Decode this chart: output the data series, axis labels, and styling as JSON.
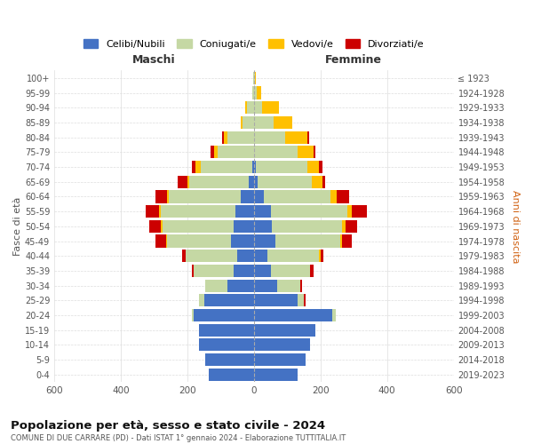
{
  "age_groups": [
    "0-4",
    "5-9",
    "10-14",
    "15-19",
    "20-24",
    "25-29",
    "30-34",
    "35-39",
    "40-44",
    "45-49",
    "50-54",
    "55-59",
    "60-64",
    "65-69",
    "70-74",
    "75-79",
    "80-84",
    "85-89",
    "90-94",
    "95-99",
    "100+"
  ],
  "birth_years": [
    "2019-2023",
    "2014-2018",
    "2009-2013",
    "2004-2008",
    "1999-2003",
    "1994-1998",
    "1989-1993",
    "1984-1988",
    "1979-1983",
    "1974-1978",
    "1969-1973",
    "1964-1968",
    "1959-1963",
    "1954-1958",
    "1949-1953",
    "1944-1948",
    "1939-1943",
    "1934-1938",
    "1929-1933",
    "1924-1928",
    "≤ 1923"
  ],
  "males": {
    "celibi": [
      135,
      145,
      165,
      165,
      180,
      150,
      80,
      60,
      50,
      70,
      60,
      55,
      40,
      15,
      5,
      0,
      0,
      0,
      0,
      0,
      0
    ],
    "coniugati": [
      0,
      0,
      0,
      0,
      5,
      15,
      65,
      120,
      155,
      190,
      215,
      225,
      215,
      180,
      155,
      110,
      80,
      35,
      20,
      5,
      2
    ],
    "vedovi": [
      0,
      0,
      0,
      0,
      0,
      0,
      0,
      0,
      0,
      5,
      5,
      5,
      5,
      5,
      15,
      10,
      10,
      5,
      5,
      0,
      0
    ],
    "divorziati": [
      0,
      0,
      0,
      0,
      0,
      0,
      0,
      5,
      10,
      30,
      35,
      40,
      35,
      30,
      10,
      10,
      5,
      0,
      0,
      0,
      0
    ]
  },
  "females": {
    "nubili": [
      130,
      155,
      170,
      185,
      235,
      130,
      70,
      50,
      40,
      65,
      55,
      50,
      30,
      10,
      5,
      0,
      0,
      0,
      0,
      0,
      0
    ],
    "coniugate": [
      0,
      0,
      0,
      0,
      10,
      20,
      70,
      120,
      155,
      195,
      210,
      230,
      200,
      165,
      155,
      130,
      95,
      60,
      25,
      8,
      2
    ],
    "vedove": [
      0,
      0,
      0,
      0,
      0,
      0,
      0,
      0,
      5,
      5,
      10,
      15,
      20,
      30,
      35,
      50,
      65,
      55,
      50,
      15,
      3
    ],
    "divorziate": [
      0,
      0,
      0,
      0,
      0,
      5,
      5,
      10,
      10,
      30,
      35,
      45,
      35,
      10,
      10,
      5,
      5,
      0,
      0,
      0,
      0
    ]
  },
  "colors": {
    "celibi_nubili": "#4472c4",
    "coniugati": "#c5d8a4",
    "vedovi": "#ffc000",
    "divorziati": "#cc0000"
  },
  "title": "Popolazione per età, sesso e stato civile - 2024",
  "subtitle": "COMUNE DI DUE CARRARE (PD) - Dati ISTAT 1° gennaio 2024 - Elaborazione TUTTITALIA.IT",
  "xlabel_left": "Maschi",
  "xlabel_right": "Femmine",
  "ylabel_left": "Fasce di età",
  "ylabel_right": "Anni di nascita",
  "legend_labels": [
    "Celibi/Nubili",
    "Coniugati/e",
    "Vedovi/e",
    "Divorziati/e"
  ],
  "xlim": 600,
  "background_color": "#ffffff",
  "grid_color": "#cccccc"
}
